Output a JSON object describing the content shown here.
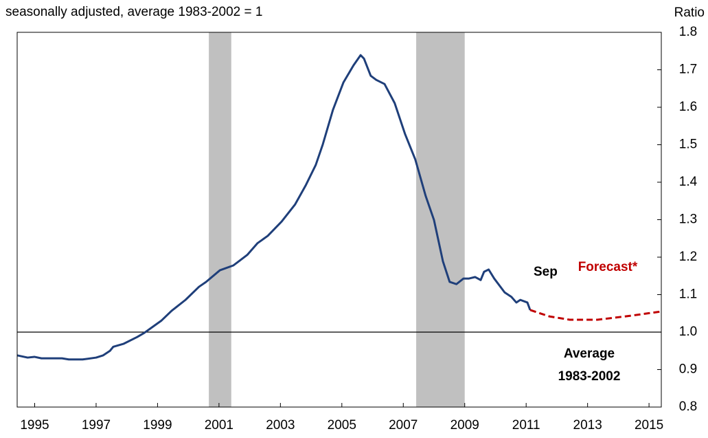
{
  "chart_data": {
    "type": "line",
    "subtitle": "seasonally adjusted, average 1983-2002 = 1",
    "y_label": "Ratio",
    "xlim": [
      1994.93,
      2015.9
    ],
    "xticks": [
      {
        "value": 1995.5,
        "label": "1995"
      },
      {
        "value": 1997.5,
        "label": "1997"
      },
      {
        "value": 1999.5,
        "label": "1999"
      },
      {
        "value": 2001.5,
        "label": "2001"
      },
      {
        "value": 2003.5,
        "label": "2003"
      },
      {
        "value": 2005.5,
        "label": "2005"
      },
      {
        "value": 2007.5,
        "label": "2007"
      },
      {
        "value": 2009.5,
        "label": "2009"
      },
      {
        "value": 2011.5,
        "label": "2011"
      },
      {
        "value": 2013.5,
        "label": "2013"
      },
      {
        "value": 2015.5,
        "label": "2015"
      }
    ],
    "ylim": [
      0.8,
      1.8
    ],
    "yticks": [
      0.8,
      0.9,
      {
        "value": 1,
        "label": "1.0"
      },
      1.1,
      1.2,
      1.3,
      1.4,
      1.5,
      1.6,
      1.7,
      1.8
    ],
    "recessions": [
      [
        2001.17,
        2001.9
      ],
      [
        2007.92,
        2009.5
      ]
    ],
    "recession_color": "#c0c0c0",
    "reference_line": 1,
    "series": [
      {
        "color": "#1f3f7a",
        "dashed": false,
        "x": [
          1994.93,
          1995.27,
          1995.49,
          1995.72,
          1996.39,
          1996.61,
          1997.06,
          1997.5,
          1997.73,
          1997.95,
          1998.06,
          1998.4,
          1998.84,
          1999.07,
          1999.29,
          1999.63,
          1999.96,
          2000.41,
          2000.85,
          2001.08,
          2001.53,
          2001.97,
          2002.42,
          2002.75,
          2003.09,
          2003.54,
          2003.98,
          2004.32,
          2004.65,
          2004.88,
          2005.21,
          2005.55,
          2005.88,
          2006.11,
          2006.22,
          2006.44,
          2006.62,
          2006.89,
          2007.22,
          2007.56,
          2007.89,
          2008.23,
          2008.5,
          2008.79,
          2009.01,
          2009.23,
          2009.46,
          2009.64,
          2009.84,
          2010.02,
          2010.13,
          2010.28,
          2010.46,
          2010.8,
          2011.02,
          2011.18,
          2011.31,
          2011.54,
          2011.63
        ],
        "values": [
          0.938,
          0.932,
          0.934,
          0.93,
          0.93,
          0.927,
          0.927,
          0.932,
          0.938,
          0.95,
          0.961,
          0.969,
          0.987,
          0.998,
          1.011,
          1.031,
          1.057,
          1.086,
          1.121,
          1.134,
          1.165,
          1.178,
          1.206,
          1.237,
          1.257,
          1.295,
          1.341,
          1.391,
          1.446,
          1.501,
          1.593,
          1.666,
          1.712,
          1.739,
          1.73,
          1.684,
          1.673,
          1.662,
          1.611,
          1.528,
          1.461,
          1.363,
          1.299,
          1.189,
          1.134,
          1.128,
          1.143,
          1.143,
          1.147,
          1.139,
          1.161,
          1.167,
          1.143,
          1.106,
          1.094,
          1.079,
          1.086,
          1.079,
          1.059
        ]
      },
      {
        "color": "#c00000",
        "dashed": true,
        "x": [
          2011.63,
          2012.25,
          2012.92,
          2013.82,
          2014.93,
          2015.89
        ],
        "values": [
          1.059,
          1.042,
          1.033,
          1.033,
          1.044,
          1.055
        ]
      }
    ],
    "annotations": [
      {
        "text": "Sep",
        "color": "#000000"
      },
      {
        "text": "Forecast*",
        "color": "#c00000"
      },
      {
        "text": "Average",
        "color": "#000000"
      },
      {
        "text": "1983-2002",
        "color": "#000000"
      }
    ]
  }
}
